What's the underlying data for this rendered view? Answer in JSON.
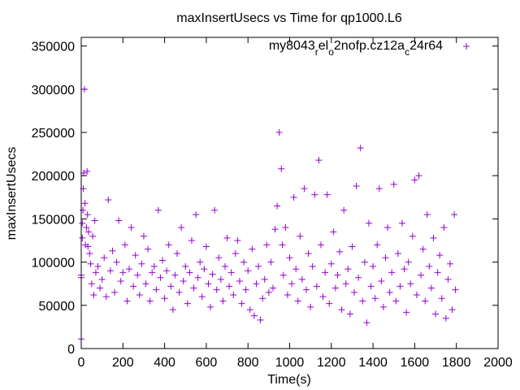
{
  "chart_data": {
    "type": "scatter",
    "title": "maxInsertUsecs vs Time for qp1000.L6",
    "xlabel": "Time(s)",
    "ylabel": "maxInsertUsecs",
    "xlim": [
      0,
      2000
    ],
    "ylim": [
      0,
      360000
    ],
    "x_ticks": [
      0,
      200,
      400,
      600,
      800,
      1000,
      1200,
      1400,
      1600,
      1800,
      2000
    ],
    "y_ticks": [
      0,
      50000,
      100000,
      150000,
      200000,
      250000,
      300000,
      350000
    ],
    "grid": false,
    "legend_position": "top-right",
    "marker": "plus",
    "point_color": "#9400d3",
    "series": [
      {
        "name_parts": [
          "my8043",
          "r",
          "el",
          "o",
          "2nofp.cz12a",
          "c",
          "24r64"
        ],
        "points": [
          [
            0,
            11000
          ],
          [
            0,
            85000
          ],
          [
            0,
            82000
          ],
          [
            5,
            128000
          ],
          [
            5,
            145000
          ],
          [
            8,
            160000
          ],
          [
            10,
            185000
          ],
          [
            12,
            203000
          ],
          [
            15,
            300000
          ],
          [
            18,
            168000
          ],
          [
            20,
            120000
          ],
          [
            25,
            140000
          ],
          [
            28,
            205000
          ],
          [
            30,
            155000
          ],
          [
            32,
            118000
          ],
          [
            35,
            135000
          ],
          [
            40,
            110000
          ],
          [
            45,
            98000
          ],
          [
            50,
            75000
          ],
          [
            55,
            130000
          ],
          [
            60,
            62000
          ],
          [
            65,
            148000
          ],
          [
            70,
            88000
          ],
          [
            80,
            95000
          ],
          [
            90,
            70000
          ],
          [
            100,
            80000
          ],
          [
            110,
            105000
          ],
          [
            120,
            60000
          ],
          [
            130,
            172000
          ],
          [
            140,
            90000
          ],
          [
            150,
            113000
          ],
          [
            160,
            65000
          ],
          [
            170,
            100000
          ],
          [
            180,
            148000
          ],
          [
            190,
            78000
          ],
          [
            200,
            88000
          ],
          [
            210,
            120000
          ],
          [
            220,
            55000
          ],
          [
            230,
            92000
          ],
          [
            240,
            140000
          ],
          [
            250,
            72000
          ],
          [
            260,
            108000
          ],
          [
            270,
            85000
          ],
          [
            280,
            62000
          ],
          [
            290,
            98000
          ],
          [
            300,
            130000
          ],
          [
            310,
            75000
          ],
          [
            320,
            115000
          ],
          [
            330,
            55000
          ],
          [
            340,
            88000
          ],
          [
            350,
            95000
          ],
          [
            360,
            68000
          ],
          [
            370,
            160000
          ],
          [
            380,
            82000
          ],
          [
            390,
            102000
          ],
          [
            400,
            58000
          ],
          [
            410,
            90000
          ],
          [
            420,
            120000
          ],
          [
            430,
            72000
          ],
          [
            440,
            45000
          ],
          [
            450,
            85000
          ],
          [
            460,
            110000
          ],
          [
            470,
            65000
          ],
          [
            480,
            140000
          ],
          [
            490,
            78000
          ],
          [
            500,
            95000
          ],
          [
            510,
            52000
          ],
          [
            520,
            88000
          ],
          [
            530,
            125000
          ],
          [
            540,
            70000
          ],
          [
            550,
            155000
          ],
          [
            560,
            82000
          ],
          [
            570,
            100000
          ],
          [
            580,
            60000
          ],
          [
            590,
            92000
          ],
          [
            600,
            118000
          ],
          [
            610,
            75000
          ],
          [
            620,
            48000
          ],
          [
            630,
            86000
          ],
          [
            640,
            160000
          ],
          [
            650,
            68000
          ],
          [
            660,
            105000
          ],
          [
            670,
            80000
          ],
          [
            680,
            55000
          ],
          [
            690,
            95000
          ],
          [
            700,
            128000
          ],
          [
            710,
            72000
          ],
          [
            720,
            88000
          ],
          [
            730,
            62000
          ],
          [
            740,
            110000
          ],
          [
            750,
            125000
          ],
          [
            760,
            78000
          ],
          [
            770,
            52000
          ],
          [
            780,
            100000
          ],
          [
            790,
            68000
          ],
          [
            800,
            90000
          ],
          [
            810,
            45000
          ],
          [
            820,
            115000
          ],
          [
            830,
            38000
          ],
          [
            840,
            75000
          ],
          [
            850,
            95000
          ],
          [
            860,
            33000
          ],
          [
            870,
            58000
          ],
          [
            880,
            80000
          ],
          [
            890,
            120000
          ],
          [
            900,
            65000
          ],
          [
            910,
            100000
          ],
          [
            920,
            70000
          ],
          [
            930,
            138000
          ],
          [
            940,
            165000
          ],
          [
            950,
            250000
          ],
          [
            960,
            208000
          ],
          [
            965,
            120000
          ],
          [
            970,
            85000
          ],
          [
            980,
            140000
          ],
          [
            990,
            62000
          ],
          [
            1000,
            105000
          ],
          [
            1010,
            75000
          ],
          [
            1020,
            175000
          ],
          [
            1030,
            92000
          ],
          [
            1040,
            55000
          ],
          [
            1050,
            130000
          ],
          [
            1060,
            80000
          ],
          [
            1070,
            185000
          ],
          [
            1080,
            68000
          ],
          [
            1090,
            110000
          ],
          [
            1100,
            48000
          ],
          [
            1110,
            95000
          ],
          [
            1120,
            178000
          ],
          [
            1130,
            72000
          ],
          [
            1140,
            218000
          ],
          [
            1150,
            120000
          ],
          [
            1160,
            60000
          ],
          [
            1170,
            88000
          ],
          [
            1180,
            178000
          ],
          [
            1190,
            52000
          ],
          [
            1200,
            98000
          ],
          [
            1210,
            135000
          ],
          [
            1220,
            70000
          ],
          [
            1230,
            85000
          ],
          [
            1240,
            112000
          ],
          [
            1250,
            45000
          ],
          [
            1260,
            160000
          ],
          [
            1270,
            75000
          ],
          [
            1280,
            92000
          ],
          [
            1290,
            40000
          ],
          [
            1300,
            118000
          ],
          [
            1310,
            65000
          ],
          [
            1320,
            188000
          ],
          [
            1330,
            82000
          ],
          [
            1340,
            232000
          ],
          [
            1350,
            55000
          ],
          [
            1360,
            100000
          ],
          [
            1370,
            30000
          ],
          [
            1380,
            145000
          ],
          [
            1390,
            72000
          ],
          [
            1400,
            95000
          ],
          [
            1410,
            58000
          ],
          [
            1420,
            120000
          ],
          [
            1430,
            185000
          ],
          [
            1440,
            78000
          ],
          [
            1450,
            48000
          ],
          [
            1460,
            105000
          ],
          [
            1470,
            140000
          ],
          [
            1480,
            65000
          ],
          [
            1490,
            88000
          ],
          [
            1500,
            190000
          ],
          [
            1510,
            55000
          ],
          [
            1520,
            110000
          ],
          [
            1530,
            72000
          ],
          [
            1540,
            145000
          ],
          [
            1550,
            92000
          ],
          [
            1560,
            42000
          ],
          [
            1570,
            100000
          ],
          [
            1580,
            75000
          ],
          [
            1590,
            130000
          ],
          [
            1600,
            195000
          ],
          [
            1610,
            62000
          ],
          [
            1620,
            200000
          ],
          [
            1630,
            85000
          ],
          [
            1640,
            115000
          ],
          [
            1650,
            55000
          ],
          [
            1660,
            155000
          ],
          [
            1670,
            95000
          ],
          [
            1680,
            70000
          ],
          [
            1690,
            128000
          ],
          [
            1700,
            40000
          ],
          [
            1710,
            88000
          ],
          [
            1720,
            108000
          ],
          [
            1730,
            58000
          ],
          [
            1740,
            140000
          ],
          [
            1750,
            35000
          ],
          [
            1760,
            80000
          ],
          [
            1770,
            98000
          ],
          [
            1780,
            45000
          ],
          [
            1790,
            155000
          ],
          [
            1795,
            68000
          ]
        ]
      }
    ]
  }
}
